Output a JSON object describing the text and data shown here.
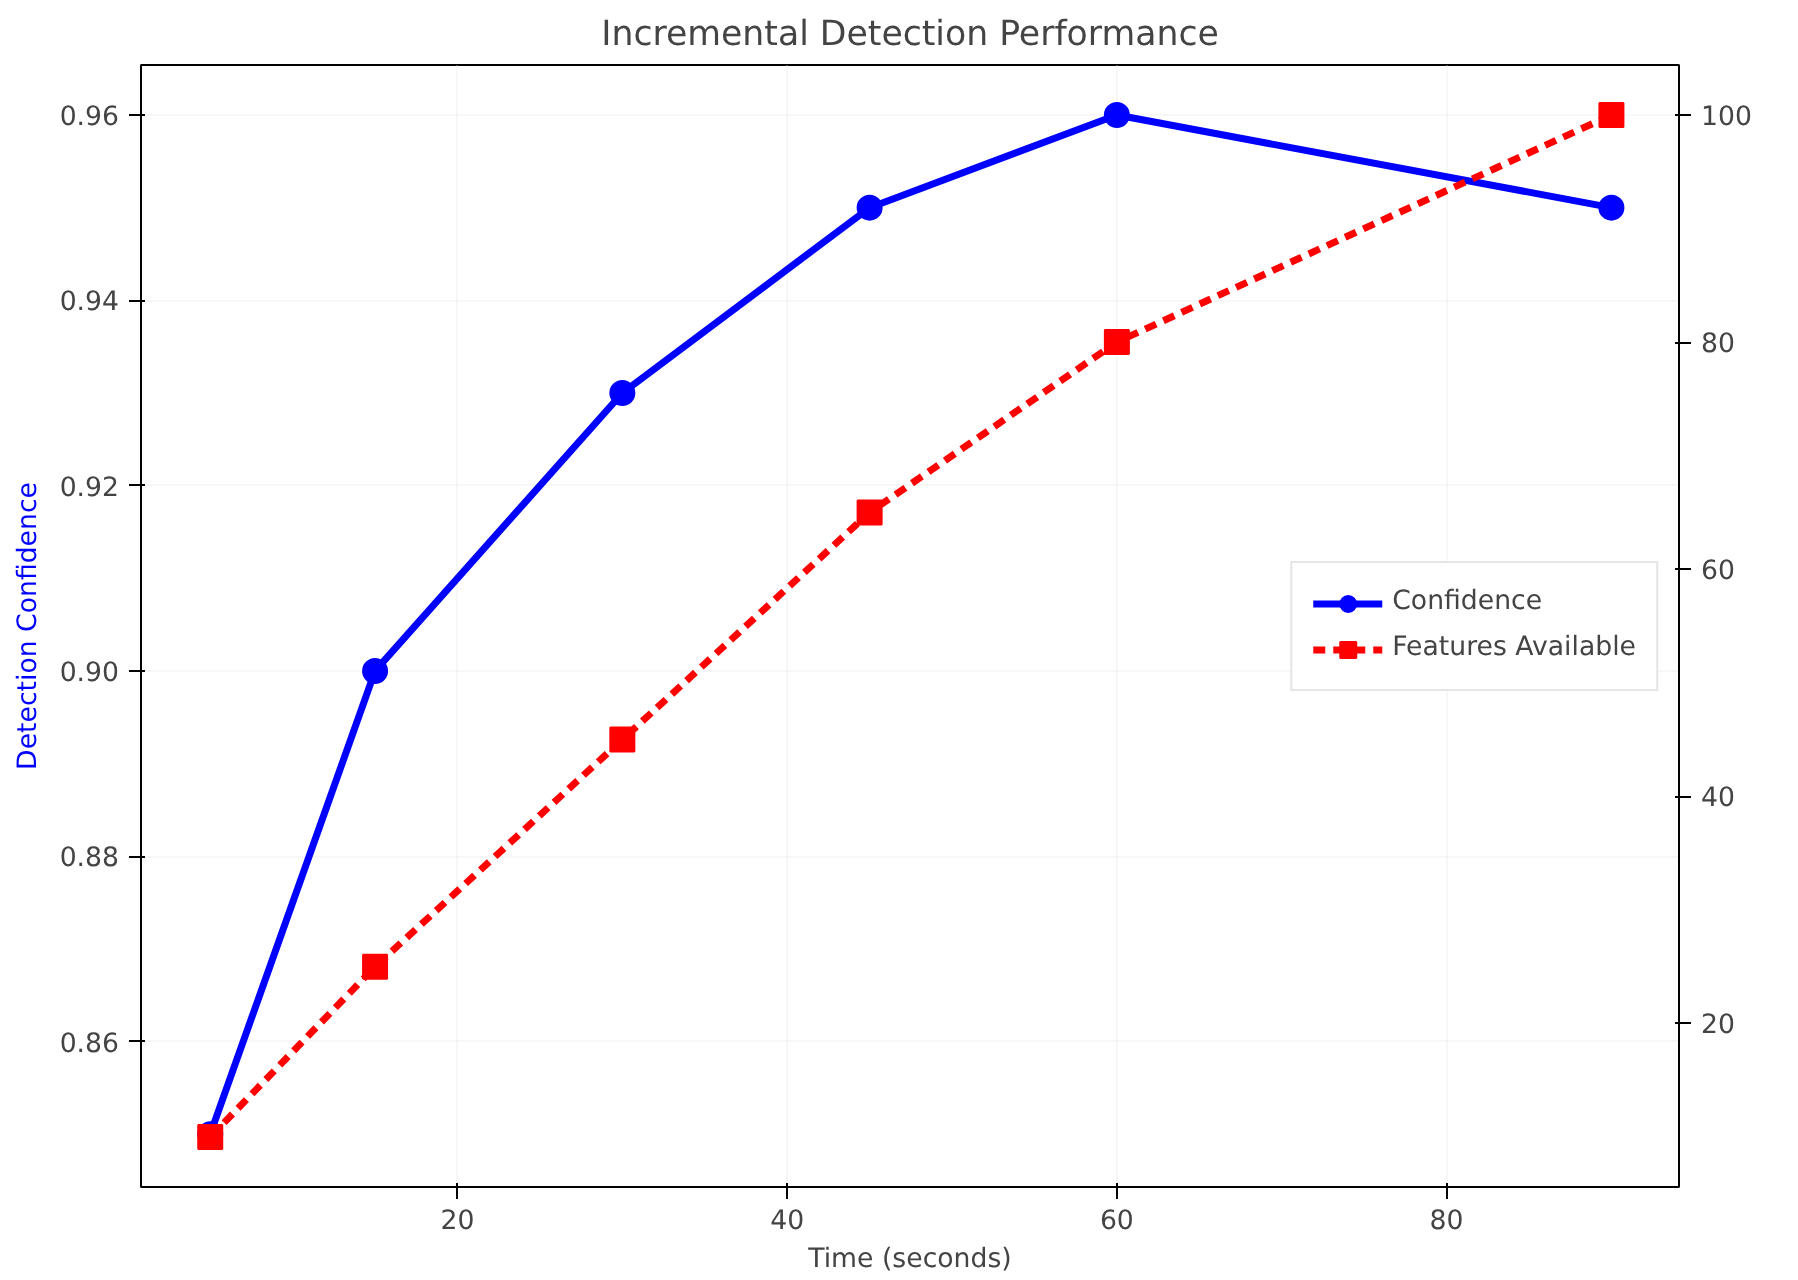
{
  "chart_data": {
    "type": "line",
    "title": "Incremental Detection Performance",
    "xlabel": "Time (seconds)",
    "ylabel": "Detection Confidence",
    "x": [
      5,
      15,
      30,
      45,
      60,
      90
    ],
    "series": [
      {
        "name": "Confidence",
        "color": "#0000ff",
        "values": [
          0.85,
          0.9,
          0.93,
          0.95,
          0.96,
          0.95
        ],
        "marker": "circle",
        "line_style": "solid"
      },
      {
        "name": "Features Available",
        "color": "#ff0000",
        "values": [
          10,
          25,
          45,
          65,
          80,
          100
        ],
        "marker": "square",
        "line_style": "dashed",
        "axis": "y2"
      }
    ],
    "xlim": [
      0.8,
      94.1
    ],
    "xticks": [
      20,
      40,
      60,
      80
    ],
    "ylim": [
      0.8443,
      0.9654
    ],
    "yticks": [
      {
        "value": 0.86,
        "label": "0.86"
      },
      {
        "value": 0.88,
        "label": "0.88"
      },
      {
        "value": 0.9,
        "label": "0.90"
      },
      {
        "value": 0.92,
        "label": "0.92"
      },
      {
        "value": 0.94,
        "label": "0.94"
      },
      {
        "value": 0.96,
        "label": "0.96"
      }
    ],
    "y2lim": [
      5.6,
      104.4
    ],
    "y2ticks": [
      20,
      40,
      60,
      80,
      100
    ],
    "grid": true,
    "legend": "right"
  }
}
